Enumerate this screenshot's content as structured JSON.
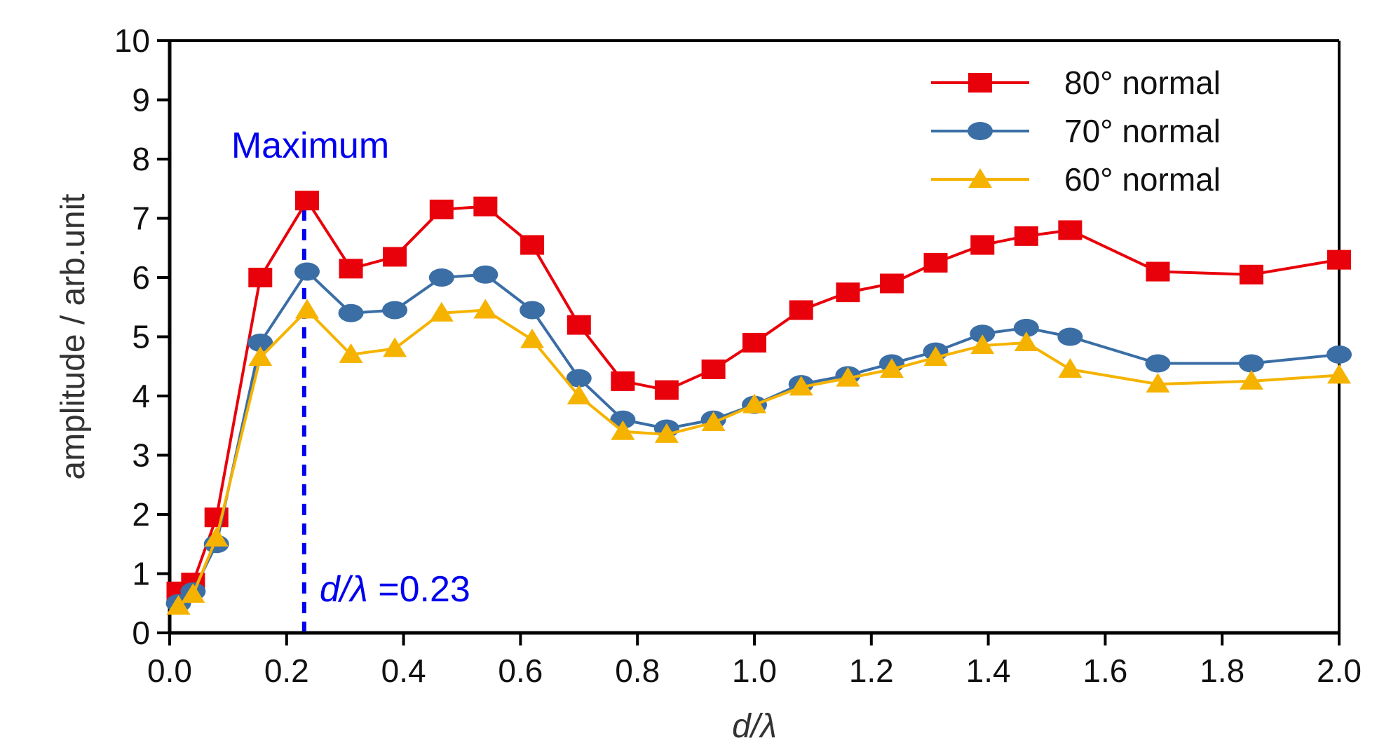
{
  "chart_data": {
    "type": "line",
    "xlabel": {
      "italic": "d",
      "mid": "/",
      "italic2": "λ"
    },
    "ylabel": "amplitude / arb.unit",
    "xlim": [
      0,
      2.0
    ],
    "ylim": [
      0,
      10
    ],
    "x_ticks": [
      "0.0",
      "0.2",
      "0.4",
      "0.6",
      "0.8",
      "1.0",
      "1.2",
      "1.4",
      "1.6",
      "1.8",
      "2.0"
    ],
    "y_ticks": [
      "0",
      "1",
      "2",
      "3",
      "4",
      "5",
      "6",
      "7",
      "8",
      "9",
      "10"
    ],
    "grid": false,
    "legend_position": "top-right",
    "series": [
      {
        "name": "80° normal",
        "color": "#e8000b",
        "marker": "square",
        "x": [
          0.015,
          0.04,
          0.08,
          0.155,
          0.235,
          0.31,
          0.385,
          0.465,
          0.54,
          0.62,
          0.7,
          0.775,
          0.85,
          0.93,
          1.0,
          1.08,
          1.16,
          1.235,
          1.31,
          1.39,
          1.465,
          1.54,
          1.69,
          1.85,
          2.0
        ],
        "y": [
          0.7,
          0.85,
          1.95,
          6.0,
          7.3,
          6.15,
          6.35,
          7.15,
          7.2,
          6.55,
          5.2,
          4.25,
          4.1,
          4.45,
          4.9,
          5.45,
          5.75,
          5.9,
          6.25,
          6.55,
          6.7,
          6.8,
          6.1,
          6.05,
          6.3
        ]
      },
      {
        "name": "70° normal",
        "color": "#3a6ea5",
        "marker": "ellipse",
        "x": [
          0.015,
          0.04,
          0.08,
          0.155,
          0.235,
          0.31,
          0.385,
          0.465,
          0.54,
          0.62,
          0.7,
          0.775,
          0.85,
          0.93,
          1.0,
          1.08,
          1.16,
          1.235,
          1.31,
          1.39,
          1.465,
          1.54,
          1.69,
          1.85,
          2.0
        ],
        "y": [
          0.5,
          0.7,
          1.5,
          4.9,
          6.1,
          5.4,
          5.45,
          6.0,
          6.05,
          5.45,
          4.3,
          3.6,
          3.45,
          3.6,
          3.85,
          4.2,
          4.35,
          4.55,
          4.75,
          5.05,
          5.15,
          5.0,
          4.55,
          4.55,
          4.7
        ]
      },
      {
        "name": "60° normal",
        "color": "#f5b300",
        "marker": "triangle",
        "x": [
          0.015,
          0.04,
          0.08,
          0.155,
          0.235,
          0.31,
          0.385,
          0.465,
          0.54,
          0.62,
          0.7,
          0.775,
          0.85,
          0.93,
          1.0,
          1.08,
          1.16,
          1.235,
          1.31,
          1.39,
          1.465,
          1.54,
          1.69,
          1.85,
          2.0
        ],
        "y": [
          0.45,
          0.65,
          1.6,
          4.65,
          5.45,
          4.7,
          4.8,
          5.4,
          5.45,
          4.95,
          4.0,
          3.4,
          3.35,
          3.55,
          3.85,
          4.15,
          4.3,
          4.45,
          4.65,
          4.85,
          4.9,
          4.45,
          4.2,
          4.25,
          4.35
        ]
      }
    ],
    "annotations": {
      "max_x": 0.23,
      "max_label": "Maximum",
      "max_value_label": {
        "italic": "d",
        "mid": "/",
        "italic2": "λ",
        "tail": " =0.23"
      },
      "color": "#0000ee"
    }
  }
}
